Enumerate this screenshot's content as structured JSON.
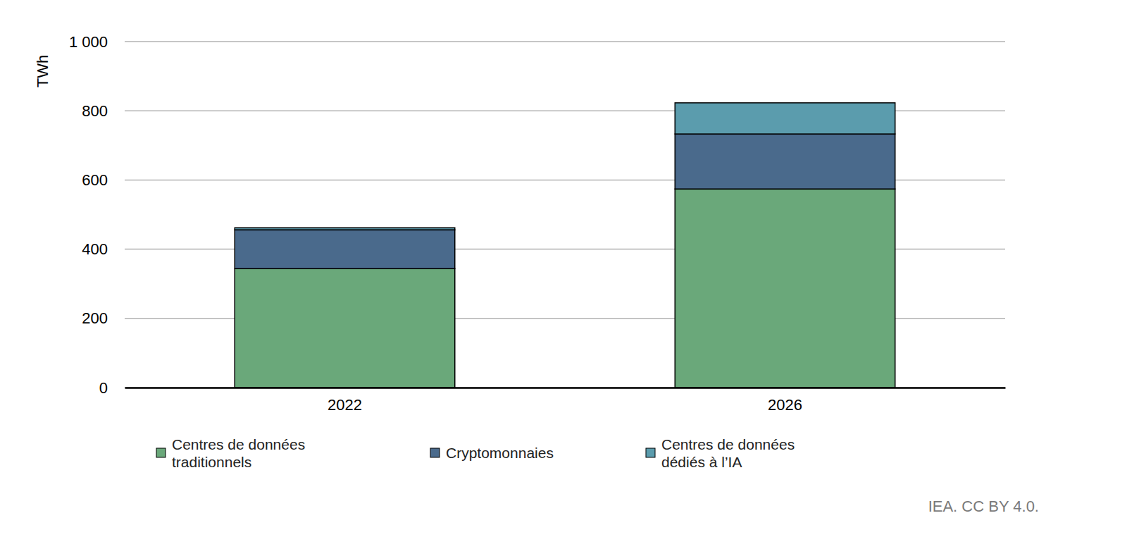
{
  "chart_data": {
    "type": "bar",
    "stacked": true,
    "grid": true,
    "legend": "bottom",
    "y_label": "TWh",
    "source": "IEA. CC BY 4.0.",
    "categories": [
      "2022",
      "2026"
    ],
    "series": [
      {
        "name": "Centres de données traditionnels",
        "color": "#6aa87a",
        "values": [
          344,
          574
        ]
      },
      {
        "name": "Cryptomonnaies",
        "color": "#4a6a8c",
        "values": [
          112,
          159
        ]
      },
      {
        "name": "Centres de données dédiés  à l’IA",
        "color": "#5b9cad",
        "values": [
          6,
          90
        ]
      }
    ],
    "ylim": [
      0,
      1000
    ],
    "yticks": [
      0,
      200,
      400,
      600,
      800,
      {
        "value": 1000,
        "label": "1 000"
      }
    ]
  }
}
